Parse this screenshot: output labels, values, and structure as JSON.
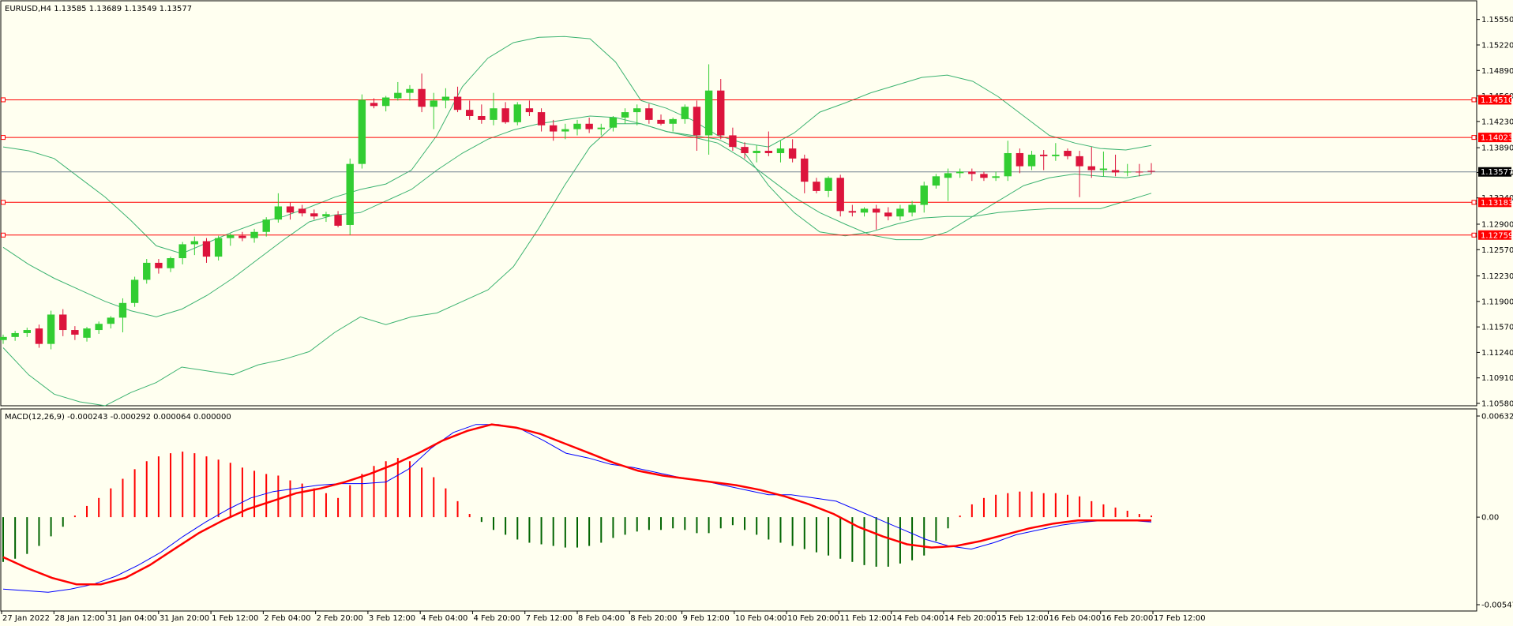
{
  "header": {
    "symbol_line": "EURUSD,H4  1.13585 1.13689 1.13549 1.13577",
    "macd_line": "MACD(12,26,9) -0.000243 -0.000292 0.000064 0.000000"
  },
  "colors": {
    "background": "#FFFFF0",
    "bull": "#32CD32",
    "bear": "#DC143C",
    "bands": "#3CB371",
    "hline": "#FF0000",
    "price_line": "#708090",
    "macd_main": "#0000FF",
    "macd_signal": "#FF0000",
    "hist_up": "#FF0000",
    "hist_down": "#006400"
  },
  "chart_data": [
    {
      "type": "candlestick",
      "symbol": "EURUSD",
      "timeframe": "H4",
      "ylim": [
        1.1058,
        1.157
      ],
      "y_ticks": [
        "1.15550",
        "1.15220",
        "1.14890",
        "1.14560",
        "1.14230",
        "1.13890",
        "1.13570",
        "1.13240",
        "1.12900",
        "1.12570",
        "1.12230",
        "1.11900",
        "1.11570",
        "1.11240",
        "1.10910",
        "1.10580"
      ],
      "x_labels": [
        "27 Jan 2022",
        "28 Jan 12:00",
        "31 Jan 04:00",
        "31 Jan 20:00",
        "1 Feb 12:00",
        "2 Feb 04:00",
        "2 Feb 20:00",
        "3 Feb 12:00",
        "4 Feb 04:00",
        "4 Feb 20:00",
        "7 Feb 12:00",
        "8 Feb 04:00",
        "8 Feb 20:00",
        "9 Feb 12:00",
        "10 Feb 04:00",
        "10 Feb 20:00",
        "11 Feb 12:00",
        "14 Feb 04:00",
        "14 Feb 20:00",
        "15 Feb 12:00",
        "16 Feb 04:00",
        "16 Feb 20:00",
        "17 Feb 12:00"
      ],
      "horizontal_levels": [
        {
          "value": 1.1451,
          "label": "1.14510"
        },
        {
          "value": 1.14023,
          "label": "1.14023"
        },
        {
          "value": 1.13183,
          "label": "1.13183"
        },
        {
          "value": 1.12759,
          "label": "1.12759"
        }
      ],
      "current_price": {
        "value": 1.13577,
        "label": "1.13577"
      },
      "candles": [
        [
          1.114,
          1.1147,
          1.1135,
          1.1144
        ],
        [
          1.1144,
          1.1152,
          1.1139,
          1.1149
        ],
        [
          1.1149,
          1.1156,
          1.1144,
          1.1153
        ],
        [
          1.1155,
          1.116,
          1.113,
          1.1135
        ],
        [
          1.1135,
          1.1178,
          1.1128,
          1.1173
        ],
        [
          1.1173,
          1.118,
          1.1145,
          1.1153
        ],
        [
          1.1153,
          1.1158,
          1.114,
          1.1147
        ],
        [
          1.1143,
          1.1157,
          1.1138,
          1.1155
        ],
        [
          1.1153,
          1.1164,
          1.1148,
          1.1161
        ],
        [
          1.1161,
          1.1171,
          1.1155,
          1.1169
        ],
        [
          1.1169,
          1.1194,
          1.115,
          1.1188
        ],
        [
          1.1188,
          1.1222,
          1.1183,
          1.1218
        ],
        [
          1.1218,
          1.1245,
          1.1213,
          1.124
        ],
        [
          1.124,
          1.1245,
          1.1226,
          1.1233
        ],
        [
          1.1233,
          1.1248,
          1.1228,
          1.1246
        ],
        [
          1.1246,
          1.1267,
          1.1238,
          1.1264
        ],
        [
          1.1264,
          1.1274,
          1.125,
          1.1268
        ],
        [
          1.1268,
          1.1272,
          1.124,
          1.1248
        ],
        [
          1.1248,
          1.1275,
          1.1243,
          1.1272
        ],
        [
          1.1272,
          1.1278,
          1.1262,
          1.1276
        ],
        [
          1.1275,
          1.128,
          1.1268,
          1.1272
        ],
        [
          1.1272,
          1.1284,
          1.1266,
          1.128
        ],
        [
          1.128,
          1.1299,
          1.1274,
          1.1296
        ],
        [
          1.1296,
          1.133,
          1.1292,
          1.1313
        ],
        [
          1.1313,
          1.1318,
          1.1296,
          1.1305
        ],
        [
          1.131,
          1.1315,
          1.13,
          1.1304
        ],
        [
          1.1304,
          1.1309,
          1.1296,
          1.13
        ],
        [
          1.13,
          1.1306,
          1.1293,
          1.1303
        ],
        [
          1.1302,
          1.1307,
          1.1286,
          1.1288
        ],
        [
          1.1289,
          1.1375,
          1.1276,
          1.1368
        ],
        [
          1.1368,
          1.1458,
          1.1362,
          1.1451
        ],
        [
          1.1447,
          1.1453,
          1.144,
          1.1443
        ],
        [
          1.1443,
          1.1456,
          1.1436,
          1.1454
        ],
        [
          1.1453,
          1.1474,
          1.145,
          1.146
        ],
        [
          1.146,
          1.147,
          1.145,
          1.1465
        ],
        [
          1.1465,
          1.1485,
          1.1435,
          1.1442
        ],
        [
          1.1442,
          1.146,
          1.1413,
          1.145
        ],
        [
          1.145,
          1.1466,
          1.144,
          1.1455
        ],
        [
          1.1455,
          1.1468,
          1.1435,
          1.1438
        ],
        [
          1.1438,
          1.145,
          1.1425,
          1.143
        ],
        [
          1.143,
          1.1445,
          1.142,
          1.1425
        ],
        [
          1.1425,
          1.146,
          1.1418,
          1.144
        ],
        [
          1.144,
          1.1448,
          1.142,
          1.1422
        ],
        [
          1.1422,
          1.1448,
          1.1418,
          1.1445
        ],
        [
          1.144,
          1.145,
          1.143,
          1.1435
        ],
        [
          1.1435,
          1.144,
          1.141,
          1.1418
        ],
        [
          1.1418,
          1.1425,
          1.1398,
          1.141
        ],
        [
          1.141,
          1.142,
          1.14,
          1.1413
        ],
        [
          1.1413,
          1.1425,
          1.1405,
          1.142
        ],
        [
          1.142,
          1.1428,
          1.1408,
          1.1413
        ],
        [
          1.1413,
          1.142,
          1.1405,
          1.1415
        ],
        [
          1.1415,
          1.143,
          1.141,
          1.1428
        ],
        [
          1.1428,
          1.144,
          1.142,
          1.1435
        ],
        [
          1.1435,
          1.1445,
          1.1418,
          1.144
        ],
        [
          1.144,
          1.1446,
          1.142,
          1.1425
        ],
        [
          1.1425,
          1.1432,
          1.1418,
          1.142
        ],
        [
          1.142,
          1.1428,
          1.141,
          1.1426
        ],
        [
          1.1426,
          1.1445,
          1.142,
          1.1442
        ],
        [
          1.1442,
          1.145,
          1.1385,
          1.1405
        ],
        [
          1.1405,
          1.1497,
          1.138,
          1.1463
        ],
        [
          1.1463,
          1.1478,
          1.14,
          1.1405
        ],
        [
          1.1405,
          1.1415,
          1.1385,
          1.139
        ],
        [
          1.139,
          1.1396,
          1.1375,
          1.1382
        ],
        [
          1.1382,
          1.1392,
          1.137,
          1.1385
        ],
        [
          1.1385,
          1.141,
          1.1378,
          1.1382
        ],
        [
          1.1382,
          1.1398,
          1.137,
          1.1388
        ],
        [
          1.1388,
          1.14,
          1.137,
          1.1375
        ],
        [
          1.1375,
          1.138,
          1.133,
          1.1345
        ],
        [
          1.1345,
          1.135,
          1.133,
          1.1333
        ],
        [
          1.1333,
          1.1352,
          1.1325,
          1.135
        ],
        [
          1.135,
          1.1354,
          1.13,
          1.1307
        ],
        [
          1.1307,
          1.1315,
          1.13,
          1.1305
        ],
        [
          1.1305,
          1.1312,
          1.13,
          1.131
        ],
        [
          1.131,
          1.1315,
          1.1283,
          1.1305
        ],
        [
          1.1305,
          1.1312,
          1.1295,
          1.13
        ],
        [
          1.13,
          1.1315,
          1.1295,
          1.131
        ],
        [
          1.1305,
          1.132,
          1.13,
          1.1315
        ],
        [
          1.1315,
          1.1345,
          1.1305,
          1.134
        ],
        [
          1.134,
          1.1355,
          1.1336,
          1.1352
        ],
        [
          1.135,
          1.1362,
          1.132,
          1.1356
        ],
        [
          1.1356,
          1.1362,
          1.135,
          1.1358
        ],
        [
          1.1358,
          1.1362,
          1.1346,
          1.1355
        ],
        [
          1.1355,
          1.1358,
          1.1346,
          1.135
        ],
        [
          1.135,
          1.1358,
          1.1346,
          1.1352
        ],
        [
          1.1352,
          1.1398,
          1.1346,
          1.1382
        ],
        [
          1.1382,
          1.1388,
          1.1356,
          1.1365
        ],
        [
          1.1365,
          1.1385,
          1.136,
          1.138
        ],
        [
          1.138,
          1.1386,
          1.136,
          1.1378
        ],
        [
          1.1378,
          1.1395,
          1.1372,
          1.138
        ],
        [
          1.1385,
          1.1388,
          1.1374,
          1.1378
        ],
        [
          1.1378,
          1.1385,
          1.1325,
          1.1365
        ],
        [
          1.1365,
          1.139,
          1.135,
          1.136
        ],
        [
          1.136,
          1.1384,
          1.1352,
          1.1362
        ],
        [
          1.136,
          1.138,
          1.1352,
          1.1357
        ],
        [
          1.1358,
          1.1368,
          1.1352,
          1.1358
        ],
        [
          1.1358,
          1.1368,
          1.1352,
          1.1357
        ],
        [
          1.1359,
          1.1369,
          1.1355,
          1.1358
        ]
      ],
      "bollinger": {
        "upper": [
          1.139,
          1.1385,
          1.1375,
          1.135,
          1.1325,
          1.1295,
          1.1262,
          1.1252,
          1.1266,
          1.128,
          1.1292,
          1.13,
          1.1312,
          1.1325,
          1.1335,
          1.1342,
          1.136,
          1.1405,
          1.1468,
          1.1505,
          1.1525,
          1.1532,
          1.1533,
          1.153,
          1.15,
          1.145,
          1.144,
          1.1425,
          1.1405,
          1.1395,
          1.139,
          1.1408,
          1.1435,
          1.1447,
          1.146,
          1.147,
          1.148,
          1.1483,
          1.1475,
          1.1455,
          1.143,
          1.1405,
          1.1395,
          1.1388,
          1.1386,
          1.1392
        ],
        "middle": [
          1.126,
          1.1238,
          1.122,
          1.1205,
          1.119,
          1.1178,
          1.117,
          1.118,
          1.1198,
          1.122,
          1.1245,
          1.127,
          1.1293,
          1.1302,
          1.1305,
          1.132,
          1.1335,
          1.136,
          1.1382,
          1.14,
          1.1412,
          1.142,
          1.1425,
          1.143,
          1.1428,
          1.142,
          1.141,
          1.1403,
          1.1395,
          1.1375,
          1.135,
          1.1325,
          1.1305,
          1.129,
          1.1276,
          1.127,
          1.127,
          1.128,
          1.13,
          1.132,
          1.134,
          1.135,
          1.1355,
          1.1352,
          1.135,
          1.1355
        ],
        "lower": [
          1.113,
          1.1095,
          1.107,
          1.106,
          1.1055,
          1.1072,
          1.1085,
          1.1105,
          1.11,
          1.1095,
          1.1108,
          1.1115,
          1.1125,
          1.115,
          1.117,
          1.116,
          1.117,
          1.1175,
          1.119,
          1.1205,
          1.1235,
          1.1285,
          1.134,
          1.139,
          1.142,
          1.142,
          1.141,
          1.1405,
          1.14,
          1.1385,
          1.134,
          1.1305,
          1.128,
          1.1275,
          1.128,
          1.129,
          1.1298,
          1.13,
          1.13,
          1.1305,
          1.1308,
          1.131,
          1.131,
          1.131,
          1.132,
          1.133
        ]
      }
    },
    {
      "type": "macd",
      "params": "12,26,9",
      "ylim": [
        -0.005476,
        0.006326
      ],
      "y_ticks": [
        "0.006326",
        "0.00",
        "-0.005476"
      ],
      "histogram": [
        -0.0028,
        -0.0026,
        -0.0023,
        -0.0018,
        -0.0012,
        -0.0006,
        0.0001,
        0.0007,
        0.0012,
        0.0018,
        0.0024,
        0.003,
        0.0035,
        0.0038,
        0.004,
        0.0041,
        0.004,
        0.0038,
        0.0036,
        0.0034,
        0.0031,
        0.0029,
        0.0027,
        0.0026,
        0.0023,
        0.0021,
        0.0018,
        0.0015,
        0.0012,
        0.002,
        0.0027,
        0.0032,
        0.0035,
        0.0037,
        0.0035,
        0.0031,
        0.0025,
        0.0018,
        0.001,
        0.0002,
        -0.0003,
        -0.0008,
        -0.0011,
        -0.0014,
        -0.0016,
        -0.0017,
        -0.0018,
        -0.0019,
        -0.0019,
        -0.0018,
        -0.0016,
        -0.0013,
        -0.0011,
        -0.0009,
        -0.0008,
        -0.0008,
        -0.0007,
        -0.0008,
        -0.001,
        -0.001,
        -0.0007,
        -0.0005,
        -0.0008,
        -0.0011,
        -0.0014,
        -0.0016,
        -0.0018,
        -0.002,
        -0.0022,
        -0.0024,
        -0.0026,
        -0.0028,
        -0.003,
        -0.0031,
        -0.0031,
        -0.0029,
        -0.0027,
        -0.0024,
        -0.0015,
        -0.0007,
        0.0001,
        0.0008,
        0.0012,
        0.0014,
        0.0015,
        0.0016,
        0.0016,
        0.0015,
        0.0015,
        0.0014,
        0.0013,
        0.001,
        0.0008,
        0.0006,
        0.0004,
        0.0002,
        0.0001
      ],
      "main": [
        -0.0045,
        -0.0046,
        -0.0047,
        -0.0045,
        -0.0042,
        -0.0037,
        -0.003,
        -0.0022,
        -0.0012,
        -0.0003,
        0.0005,
        0.0012,
        0.0016,
        0.0018,
        0.002,
        0.0021,
        0.0021,
        0.0022,
        0.003,
        0.0043,
        0.0053,
        0.0058,
        0.0058,
        0.0055,
        0.0048,
        0.004,
        0.0037,
        0.0033,
        0.0031,
        0.0028,
        0.0025,
        0.0023,
        0.002,
        0.0017,
        0.0014,
        0.0014,
        0.0012,
        0.001,
        0.0004,
        -0.0002,
        -0.0008,
        -0.0014,
        -0.0018,
        -0.002,
        -0.0016,
        -0.0011,
        -0.0008,
        -0.0005,
        -0.0003,
        -0.0002,
        -0.0002,
        -0.0003
      ],
      "signal": [
        -0.0025,
        -0.0032,
        -0.0038,
        -0.0042,
        -0.0042,
        -0.0038,
        -0.003,
        -0.002,
        -0.001,
        -0.0002,
        0.0005,
        0.001,
        0.0015,
        0.0018,
        0.0022,
        0.0027,
        0.0033,
        0.004,
        0.0048,
        0.0054,
        0.0058,
        0.0056,
        0.0052,
        0.0046,
        0.004,
        0.0034,
        0.0029,
        0.0026,
        0.0024,
        0.0022,
        0.002,
        0.0017,
        0.0013,
        0.0008,
        0.0002,
        -0.0006,
        -0.0012,
        -0.0017,
        -0.0019,
        -0.0018,
        -0.0015,
        -0.0011,
        -0.0007,
        -0.0004,
        -0.0002,
        -0.0002,
        -0.0002,
        -0.0002
      ]
    }
  ]
}
